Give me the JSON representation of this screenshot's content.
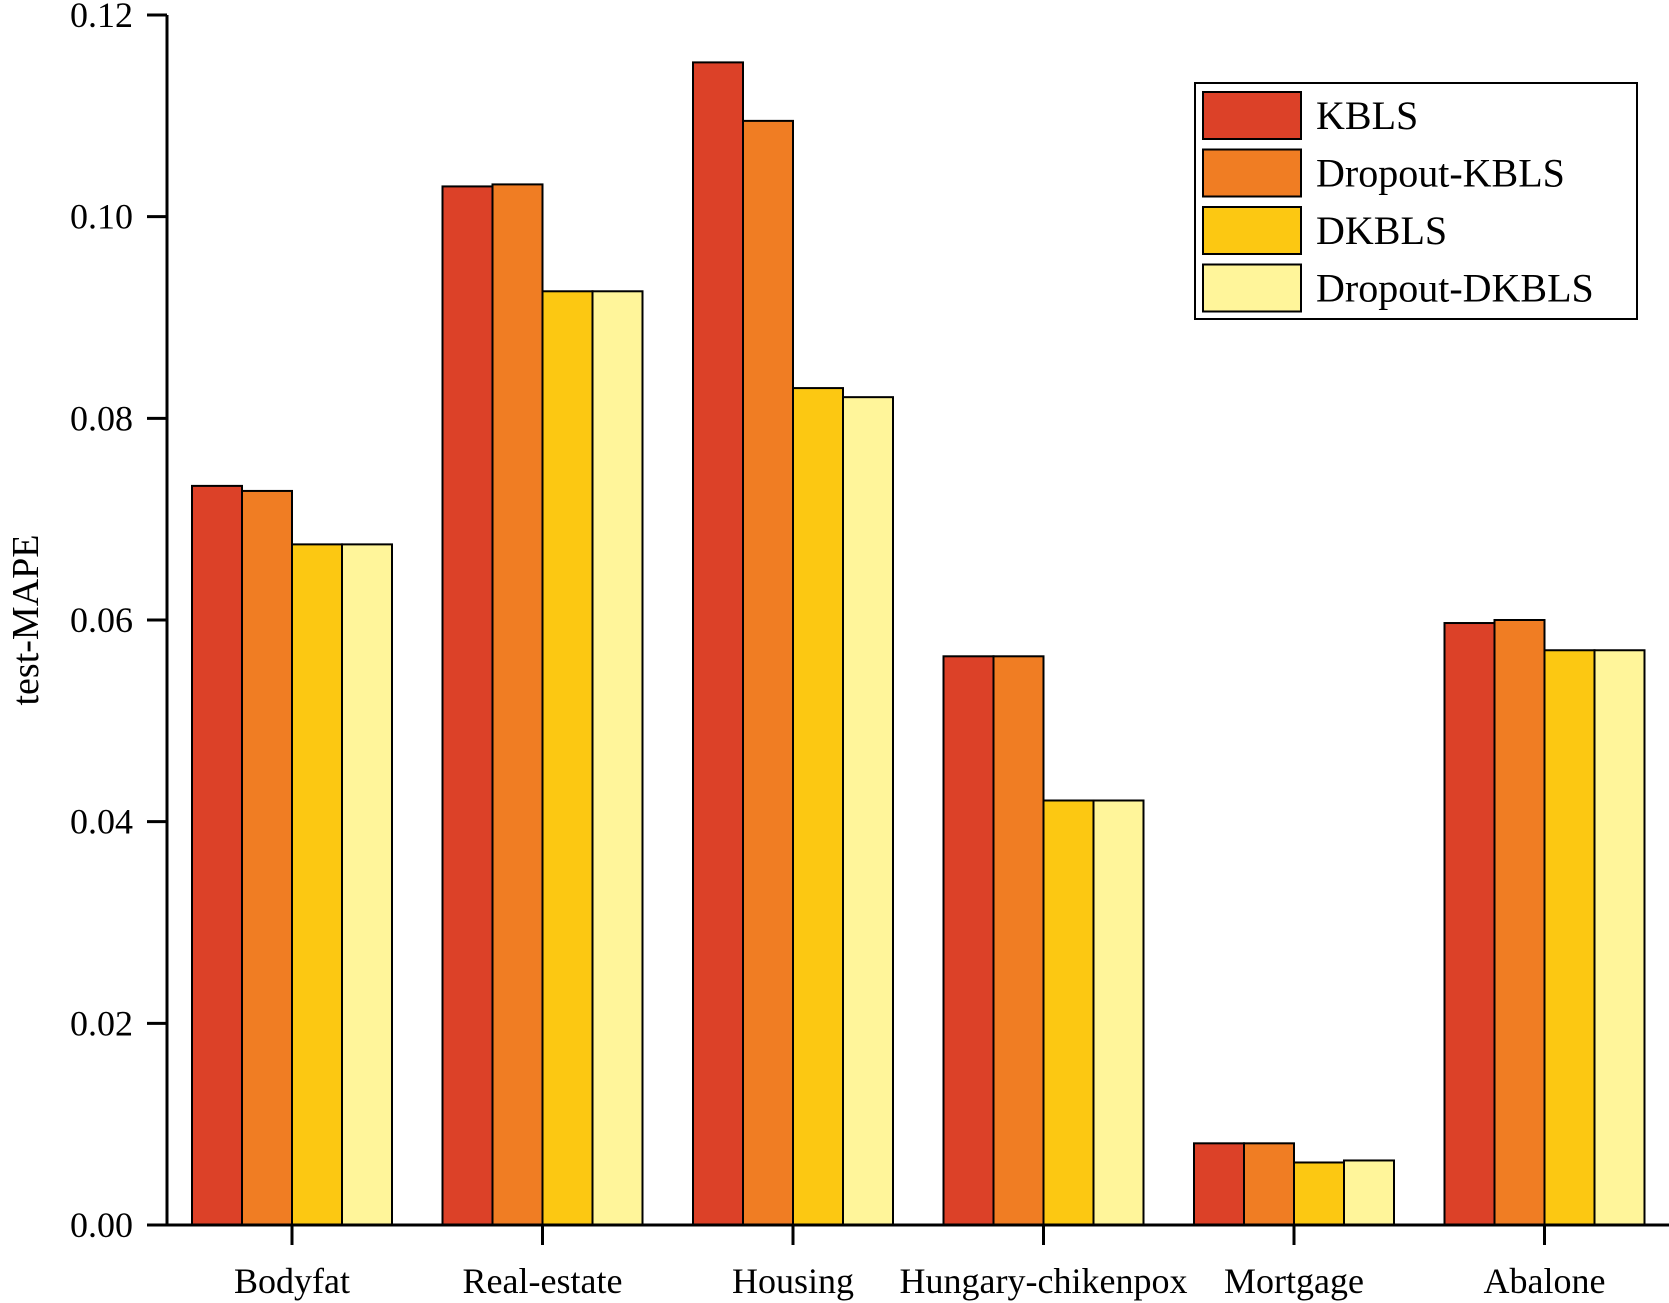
{
  "chart_data": {
    "type": "bar",
    "title": "",
    "xlabel": "",
    "ylabel": "test-MAPE",
    "ylim": [
      0,
      0.12
    ],
    "yticks": [
      "0.00",
      "0.02",
      "0.04",
      "0.06",
      "0.08",
      "0.10",
      "0.12"
    ],
    "grid": false,
    "legend_position": "top-right",
    "categories": [
      "Bodyfat",
      "Real-estate",
      "Housing",
      "Hungary-chikenpox",
      "Mortgage",
      "Abalone"
    ],
    "series": [
      {
        "name": "KBLS",
        "color": "#DC4128",
        "values": [
          0.0733,
          0.103,
          0.1153,
          0.0564,
          0.0081,
          0.0597
        ]
      },
      {
        "name": "Dropout-KBLS",
        "color": "#F07D23",
        "values": [
          0.0728,
          0.1032,
          0.1095,
          0.0564,
          0.0081,
          0.06
        ]
      },
      {
        "name": "DKBLS",
        "color": "#FCC812",
        "values": [
          0.0675,
          0.0926,
          0.083,
          0.0421,
          0.0062,
          0.057
        ]
      },
      {
        "name": "Dropout-DKBLS",
        "color": "#FFF59A",
        "values": [
          0.0675,
          0.0926,
          0.0821,
          0.0421,
          0.0064,
          0.057
        ]
      }
    ]
  }
}
